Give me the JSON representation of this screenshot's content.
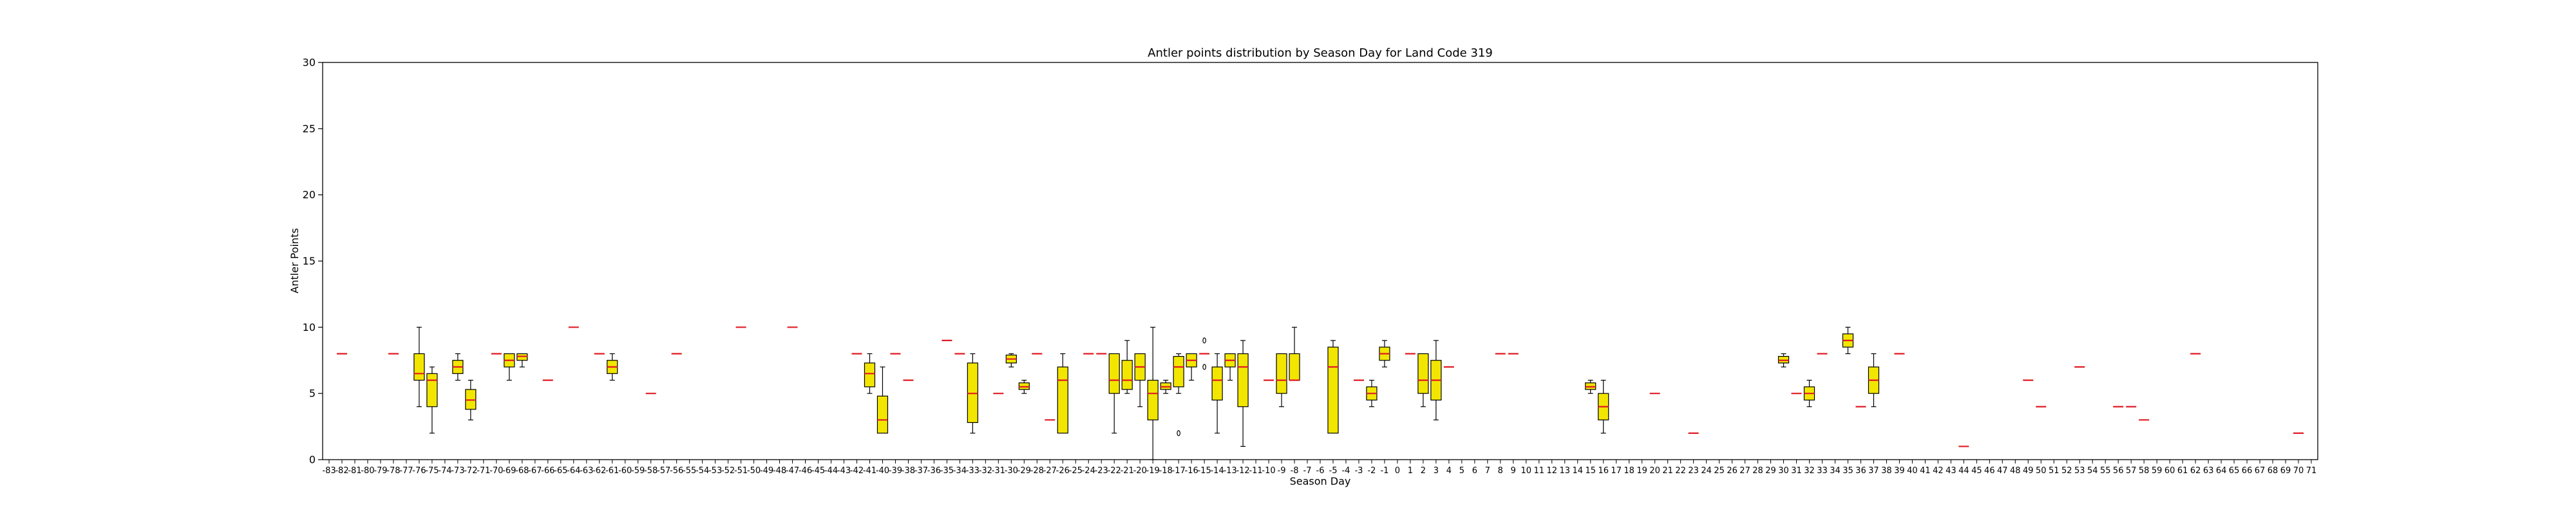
{
  "chart_data": {
    "type": "box",
    "title": "Antler points distribution by Season Day for Land Code 319",
    "xlabel": "Season Day",
    "ylabel": "Antler Points",
    "ylim": [
      0,
      30
    ],
    "yticks": [
      0,
      5,
      10,
      15,
      20,
      25,
      30
    ],
    "x_range": [
      -83,
      71
    ],
    "grid": false,
    "colors": {
      "box_fill": "#f2e600",
      "median": "#e01b24",
      "line": "#000000"
    },
    "boxes": [
      {
        "x": -82,
        "min": 8,
        "q1": 8,
        "median": 8,
        "q3": 8,
        "max": 8
      },
      {
        "x": -78,
        "min": 8,
        "q1": 8,
        "median": 8,
        "q3": 8,
        "max": 8
      },
      {
        "x": -76,
        "min": 4,
        "q1": 6,
        "median": 6.5,
        "q3": 8,
        "max": 10
      },
      {
        "x": -75,
        "min": 2,
        "q1": 4,
        "median": 6,
        "q3": 6.5,
        "max": 7
      },
      {
        "x": -73,
        "min": 6,
        "q1": 6.5,
        "median": 7,
        "q3": 7.5,
        "max": 8
      },
      {
        "x": -72,
        "min": 3,
        "q1": 3.8,
        "median": 4.5,
        "q3": 5.3,
        "max": 6
      },
      {
        "x": -70,
        "min": 8,
        "q1": 8,
        "median": 8,
        "q3": 8,
        "max": 8
      },
      {
        "x": -69,
        "min": 6,
        "q1": 7,
        "median": 7.5,
        "q3": 8,
        "max": 8
      },
      {
        "x": -68,
        "min": 7,
        "q1": 7.5,
        "median": 7.8,
        "q3": 8,
        "max": 8
      },
      {
        "x": -66,
        "min": 6,
        "q1": 6,
        "median": 6,
        "q3": 6,
        "max": 6
      },
      {
        "x": -64,
        "min": 10,
        "q1": 10,
        "median": 10,
        "q3": 10,
        "max": 10
      },
      {
        "x": -62,
        "min": 8,
        "q1": 8,
        "median": 8,
        "q3": 8,
        "max": 8
      },
      {
        "x": -61,
        "min": 6,
        "q1": 6.5,
        "median": 7,
        "q3": 7.5,
        "max": 8
      },
      {
        "x": -58,
        "min": 5,
        "q1": 5,
        "median": 5,
        "q3": 5,
        "max": 5
      },
      {
        "x": -56,
        "min": 8,
        "q1": 8,
        "median": 8,
        "q3": 8,
        "max": 8
      },
      {
        "x": -51,
        "min": 10,
        "q1": 10,
        "median": 10,
        "q3": 10,
        "max": 10
      },
      {
        "x": -47,
        "min": 10,
        "q1": 10,
        "median": 10,
        "q3": 10,
        "max": 10
      },
      {
        "x": -42,
        "min": 8,
        "q1": 8,
        "median": 8,
        "q3": 8,
        "max": 8
      },
      {
        "x": -41,
        "min": 5,
        "q1": 5.5,
        "median": 6.5,
        "q3": 7.3,
        "max": 8
      },
      {
        "x": -40,
        "min": 2,
        "q1": 2,
        "median": 3,
        "q3": 4.8,
        "max": 7
      },
      {
        "x": -39,
        "min": 8,
        "q1": 8,
        "median": 8,
        "q3": 8,
        "max": 8
      },
      {
        "x": -38,
        "min": 6,
        "q1": 6,
        "median": 6,
        "q3": 6,
        "max": 6
      },
      {
        "x": -35,
        "min": 9,
        "q1": 9,
        "median": 9,
        "q3": 9,
        "max": 9
      },
      {
        "x": -34,
        "min": 8,
        "q1": 8,
        "median": 8,
        "q3": 8,
        "max": 8
      },
      {
        "x": -33,
        "min": 2,
        "q1": 2.8,
        "median": 5,
        "q3": 7.3,
        "max": 8
      },
      {
        "x": -31,
        "min": 5,
        "q1": 5,
        "median": 5,
        "q3": 5,
        "max": 5
      },
      {
        "x": -30,
        "min": 7,
        "q1": 7.3,
        "median": 7.6,
        "q3": 7.9,
        "max": 8
      },
      {
        "x": -29,
        "min": 5,
        "q1": 5.3,
        "median": 5.5,
        "q3": 5.8,
        "max": 6
      },
      {
        "x": -28,
        "min": 8,
        "q1": 8,
        "median": 8,
        "q3": 8,
        "max": 8
      },
      {
        "x": -27,
        "min": 3,
        "q1": 3,
        "median": 3,
        "q3": 3,
        "max": 3
      },
      {
        "x": -26,
        "min": 2,
        "q1": 2,
        "median": 6,
        "q3": 7,
        "max": 8
      },
      {
        "x": -24,
        "min": 8,
        "q1": 8,
        "median": 8,
        "q3": 8,
        "max": 8
      },
      {
        "x": -23,
        "min": 8,
        "q1": 8,
        "median": 8,
        "q3": 8,
        "max": 8
      },
      {
        "x": -22,
        "min": 2,
        "q1": 5,
        "median": 6,
        "q3": 8,
        "max": 8
      },
      {
        "x": -21,
        "min": 5,
        "q1": 5.3,
        "median": 6,
        "q3": 7.5,
        "max": 9
      },
      {
        "x": -20,
        "min": 4,
        "q1": 6,
        "median": 7,
        "q3": 8,
        "max": 8
      },
      {
        "x": -19,
        "min": 0,
        "q1": 3,
        "median": 5,
        "q3": 6,
        "max": 10
      },
      {
        "x": -18,
        "min": 5,
        "q1": 5.3,
        "median": 5.5,
        "q3": 5.8,
        "max": 6
      },
      {
        "x": -17,
        "min": 5,
        "q1": 5.5,
        "median": 7,
        "q3": 7.8,
        "max": 8,
        "outliers": [
          2
        ]
      },
      {
        "x": -16,
        "min": 6,
        "q1": 7,
        "median": 7.5,
        "q3": 8,
        "max": 8
      },
      {
        "x": -15,
        "min": 8,
        "q1": 8,
        "median": 8,
        "q3": 8,
        "max": 8,
        "outliers": [
          7,
          9
        ]
      },
      {
        "x": -14,
        "min": 2,
        "q1": 4.5,
        "median": 6,
        "q3": 7,
        "max": 8
      },
      {
        "x": -13,
        "min": 6,
        "q1": 7,
        "median": 7.5,
        "q3": 8,
        "max": 8
      },
      {
        "x": -12,
        "min": 1,
        "q1": 4,
        "median": 7,
        "q3": 8,
        "max": 9
      },
      {
        "x": -10,
        "min": 6,
        "q1": 6,
        "median": 6,
        "q3": 6,
        "max": 6
      },
      {
        "x": -9,
        "min": 4,
        "q1": 5,
        "median": 6,
        "q3": 8,
        "max": 8
      },
      {
        "x": -8,
        "min": 6,
        "q1": 6,
        "median": 6,
        "q3": 8,
        "max": 10
      },
      {
        "x": -5,
        "min": 2,
        "q1": 2,
        "median": 7,
        "q3": 8.5,
        "max": 9
      },
      {
        "x": -3,
        "min": 6,
        "q1": 6,
        "median": 6,
        "q3": 6,
        "max": 6
      },
      {
        "x": -2,
        "min": 4,
        "q1": 4.5,
        "median": 5,
        "q3": 5.5,
        "max": 6
      },
      {
        "x": -1,
        "min": 7,
        "q1": 7.5,
        "median": 8,
        "q3": 8.5,
        "max": 9
      },
      {
        "x": 1,
        "min": 8,
        "q1": 8,
        "median": 8,
        "q3": 8,
        "max": 8
      },
      {
        "x": 2,
        "min": 4,
        "q1": 5,
        "median": 6,
        "q3": 8,
        "max": 8
      },
      {
        "x": 3,
        "min": 3,
        "q1": 4.5,
        "median": 6,
        "q3": 7.5,
        "max": 9
      },
      {
        "x": 4,
        "min": 7,
        "q1": 7,
        "median": 7,
        "q3": 7,
        "max": 7
      },
      {
        "x": 8,
        "min": 8,
        "q1": 8,
        "median": 8,
        "q3": 8,
        "max": 8
      },
      {
        "x": 9,
        "min": 8,
        "q1": 8,
        "median": 8,
        "q3": 8,
        "max": 8
      },
      {
        "x": 15,
        "min": 5,
        "q1": 5.3,
        "median": 5.5,
        "q3": 5.8,
        "max": 6
      },
      {
        "x": 16,
        "min": 2,
        "q1": 3,
        "median": 4,
        "q3": 5,
        "max": 6
      },
      {
        "x": 20,
        "min": 5,
        "q1": 5,
        "median": 5,
        "q3": 5,
        "max": 5
      },
      {
        "x": 23,
        "min": 2,
        "q1": 2,
        "median": 2,
        "q3": 2,
        "max": 2
      },
      {
        "x": 30,
        "min": 7,
        "q1": 7.3,
        "median": 7.5,
        "q3": 7.8,
        "max": 8
      },
      {
        "x": 31,
        "min": 5,
        "q1": 5,
        "median": 5,
        "q3": 5,
        "max": 5
      },
      {
        "x": 32,
        "min": 4,
        "q1": 4.5,
        "median": 5,
        "q3": 5.5,
        "max": 6
      },
      {
        "x": 33,
        "min": 8,
        "q1": 8,
        "median": 8,
        "q3": 8,
        "max": 8
      },
      {
        "x": 35,
        "min": 8,
        "q1": 8.5,
        "median": 9,
        "q3": 9.5,
        "max": 10
      },
      {
        "x": 36,
        "min": 4,
        "q1": 4,
        "median": 4,
        "q3": 4,
        "max": 4
      },
      {
        "x": 37,
        "min": 4,
        "q1": 5,
        "median": 6,
        "q3": 7,
        "max": 8
      },
      {
        "x": 39,
        "min": 8,
        "q1": 8,
        "median": 8,
        "q3": 8,
        "max": 8
      },
      {
        "x": 44,
        "min": 1,
        "q1": 1,
        "median": 1,
        "q3": 1,
        "max": 1
      },
      {
        "x": 49,
        "min": 6,
        "q1": 6,
        "median": 6,
        "q3": 6,
        "max": 6
      },
      {
        "x": 50,
        "min": 4,
        "q1": 4,
        "median": 4,
        "q3": 4,
        "max": 4
      },
      {
        "x": 53,
        "min": 7,
        "q1": 7,
        "median": 7,
        "q3": 7,
        "max": 7
      },
      {
        "x": 56,
        "min": 4,
        "q1": 4,
        "median": 4,
        "q3": 4,
        "max": 4
      },
      {
        "x": 57,
        "min": 4,
        "q1": 4,
        "median": 4,
        "q3": 4,
        "max": 4
      },
      {
        "x": 58,
        "min": 3,
        "q1": 3,
        "median": 3,
        "q3": 3,
        "max": 3
      },
      {
        "x": 62,
        "min": 8,
        "q1": 8,
        "median": 8,
        "q3": 8,
        "max": 8
      },
      {
        "x": 70,
        "min": 2,
        "q1": 2,
        "median": 2,
        "q3": 2,
        "max": 2
      }
    ]
  }
}
